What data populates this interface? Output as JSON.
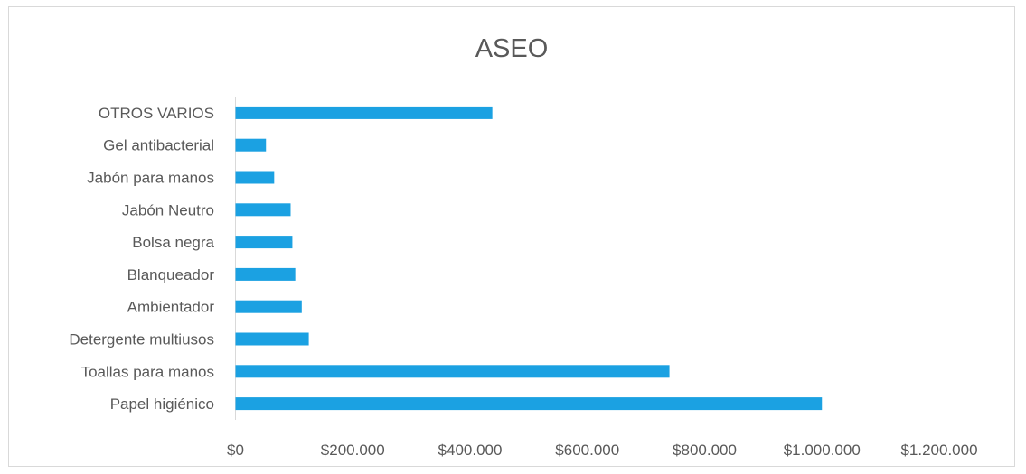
{
  "chart_data": {
    "type": "bar",
    "orientation": "horizontal",
    "title": "ASEO",
    "categories": [
      "Papel higiénico",
      "Toallas para manos",
      "Detergente multiusos",
      "Ambientador",
      "Blanqueador",
      "Bolsa negra",
      "Jabón Neutro",
      "Jabón para manos",
      "Gel antibacterial",
      "OTROS VARIOS"
    ],
    "values": [
      1000000,
      740000,
      125000,
      113000,
      102000,
      97000,
      94000,
      66000,
      52000,
      438000
    ],
    "xlim": [
      0,
      1200000
    ],
    "xticks": [
      0,
      200000,
      400000,
      600000,
      800000,
      1000000,
      1200000
    ],
    "xtick_labels": [
      "$0",
      "$200.000",
      "$400.000",
      "$600.000",
      "$800.000",
      "$1.000.000",
      "$1.200.000"
    ],
    "bar_color": "#1ba1e2",
    "grid": false,
    "legend": "none"
  }
}
